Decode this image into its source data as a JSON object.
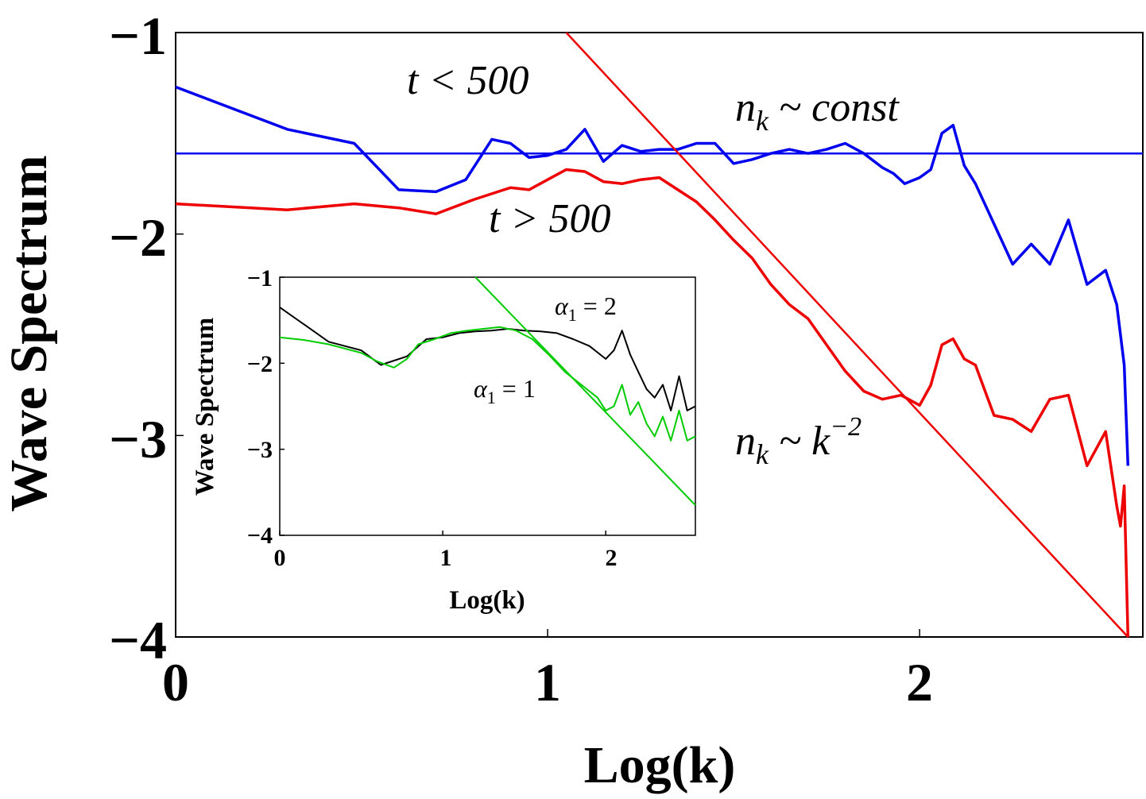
{
  "chart_data": [
    {
      "type": "line",
      "title": "",
      "xlabel": "Log(k)",
      "ylabel": "Wave Spectrum",
      "xlim": [
        0,
        2.6
      ],
      "ylim": [
        -4,
        -1
      ],
      "xticks": [
        "0",
        "1",
        "2"
      ],
      "yticks": [
        "−1",
        "−2",
        "−3",
        "−4"
      ],
      "annotations": {
        "t_lt": "t < 500",
        "t_gt": "t > 500",
        "nk_const": "n",
        "nk_const_sub": "k",
        "nk_const_rest": " ~ const",
        "nk_power": "n",
        "nk_power_sub": "k",
        "nk_power_rest": " ~ k",
        "nk_power_sup": "−2"
      },
      "series": [
        {
          "name": "t < 500",
          "color": "#0000ee",
          "x": [
            0,
            0.3,
            0.48,
            0.6,
            0.7,
            0.78,
            0.85,
            0.9,
            0.95,
            1.0,
            1.05,
            1.1,
            1.15,
            1.2,
            1.25,
            1.3,
            1.35,
            1.4,
            1.45,
            1.5,
            1.55,
            1.6,
            1.65,
            1.7,
            1.75,
            1.8,
            1.85,
            1.9,
            1.93,
            1.96,
            2.0,
            2.03,
            2.06,
            2.09,
            2.12,
            2.15,
            2.2,
            2.25,
            2.3,
            2.35,
            2.4,
            2.45,
            2.5,
            2.53,
            2.55,
            2.56
          ],
          "values": [
            -1.27,
            -1.48,
            -1.55,
            -1.78,
            -1.79,
            -1.73,
            -1.53,
            -1.55,
            -1.62,
            -1.61,
            -1.58,
            -1.48,
            -1.64,
            -1.56,
            -1.59,
            -1.58,
            -1.58,
            -1.55,
            -1.55,
            -1.65,
            -1.63,
            -1.6,
            -1.58,
            -1.6,
            -1.58,
            -1.55,
            -1.6,
            -1.67,
            -1.7,
            -1.75,
            -1.72,
            -1.68,
            -1.5,
            -1.46,
            -1.66,
            -1.75,
            -1.95,
            -2.15,
            -2.05,
            -2.15,
            -1.93,
            -2.25,
            -2.18,
            -2.35,
            -2.65,
            -3.15
          ]
        },
        {
          "name": "t > 500",
          "color": "#ee0000",
          "x": [
            0,
            0.3,
            0.48,
            0.6,
            0.7,
            0.8,
            0.9,
            0.95,
            1.0,
            1.05,
            1.1,
            1.15,
            1.2,
            1.25,
            1.3,
            1.35,
            1.4,
            1.45,
            1.5,
            1.55,
            1.6,
            1.65,
            1.7,
            1.75,
            1.8,
            1.85,
            1.9,
            1.95,
            2.0,
            2.03,
            2.06,
            2.09,
            2.12,
            2.15,
            2.2,
            2.25,
            2.3,
            2.35,
            2.4,
            2.45,
            2.5,
            2.53,
            2.54,
            2.55,
            2.56
          ],
          "values": [
            -1.85,
            -1.88,
            -1.85,
            -1.87,
            -1.9,
            -1.83,
            -1.77,
            -1.78,
            -1.73,
            -1.68,
            -1.69,
            -1.74,
            -1.75,
            -1.73,
            -1.72,
            -1.78,
            -1.84,
            -1.93,
            -2.03,
            -2.12,
            -2.25,
            -2.35,
            -2.42,
            -2.55,
            -2.68,
            -2.78,
            -2.82,
            -2.8,
            -2.85,
            -2.75,
            -2.55,
            -2.52,
            -2.62,
            -2.65,
            -2.9,
            -2.92,
            -2.98,
            -2.82,
            -2.8,
            -3.15,
            -2.98,
            -3.35,
            -3.45,
            -3.25,
            -4.0
          ]
        },
        {
          "name": "n_k ~ const",
          "color": "#0000ee",
          "x": [
            0,
            2.6
          ],
          "values": [
            -1.6,
            -1.6
          ]
        },
        {
          "name": "n_k ~ k^-2",
          "color": "#ee0000",
          "x": [
            1.05,
            2.56
          ],
          "values": [
            -1.0,
            -4.0
          ]
        }
      ]
    },
    {
      "type": "line",
      "title": "",
      "xlabel": "Log(k)",
      "ylabel": "Wave Spectrum",
      "xlim": [
        0,
        2.55
      ],
      "ylim": [
        -4,
        -1
      ],
      "xticks": [
        "0",
        "1",
        "2"
      ],
      "yticks": [
        "−1",
        "−2",
        "−3",
        "−4"
      ],
      "annotations": {
        "alpha2": "α",
        "alpha2_sub": "1",
        "alpha2_rest": " = 2",
        "alpha1": "α",
        "alpha1_sub": "1",
        "alpha1_rest": " = 1"
      },
      "series": [
        {
          "name": "α1 = 2",
          "color": "#000000",
          "x": [
            0,
            0.15,
            0.3,
            0.5,
            0.62,
            0.78,
            0.9,
            1.0,
            1.1,
            1.2,
            1.3,
            1.4,
            1.5,
            1.6,
            1.7,
            1.8,
            1.9,
            2.0,
            2.05,
            2.1,
            2.15,
            2.2,
            2.25,
            2.3,
            2.35,
            2.4,
            2.45,
            2.5,
            2.55
          ],
          "values": [
            -1.35,
            -1.55,
            -1.75,
            -1.85,
            -2.02,
            -1.92,
            -1.72,
            -1.7,
            -1.65,
            -1.63,
            -1.62,
            -1.6,
            -1.62,
            -1.63,
            -1.65,
            -1.72,
            -1.8,
            -1.95,
            -1.85,
            -1.62,
            -1.9,
            -2.1,
            -2.3,
            -2.4,
            -2.25,
            -2.55,
            -2.15,
            -2.55,
            -2.5
          ]
        },
        {
          "name": "α1 = 1",
          "color": "#00cc00",
          "x": [
            0,
            0.15,
            0.3,
            0.5,
            0.6,
            0.7,
            0.78,
            0.85,
            0.95,
            1.05,
            1.15,
            1.25,
            1.35,
            1.45,
            1.55,
            1.65,
            1.75,
            1.85,
            1.95,
            2.0,
            2.05,
            2.1,
            2.15,
            2.2,
            2.25,
            2.3,
            2.35,
            2.4,
            2.45,
            2.5,
            2.55
          ],
          "values": [
            -1.7,
            -1.73,
            -1.78,
            -1.88,
            -1.98,
            -2.05,
            -1.95,
            -1.78,
            -1.72,
            -1.65,
            -1.62,
            -1.6,
            -1.58,
            -1.62,
            -1.72,
            -1.9,
            -2.1,
            -2.25,
            -2.4,
            -2.55,
            -2.5,
            -2.25,
            -2.6,
            -2.45,
            -2.7,
            -2.85,
            -2.62,
            -2.9,
            -2.55,
            -2.9,
            -2.85
          ]
        },
        {
          "name": "slope line",
          "color": "#00cc00",
          "x": [
            1.2,
            2.55
          ],
          "values": [
            -0.98,
            -3.65
          ]
        }
      ]
    }
  ]
}
